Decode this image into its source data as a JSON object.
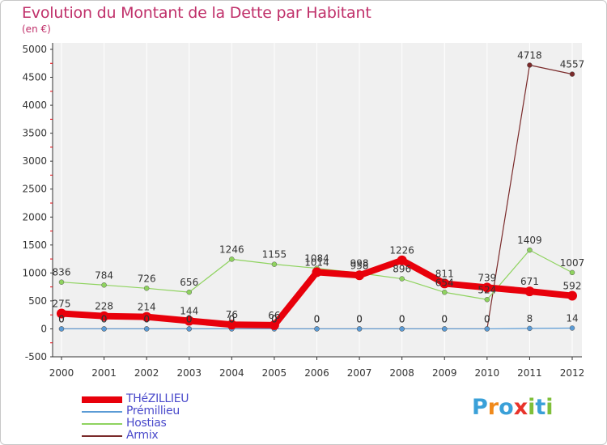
{
  "title": "Evolution du Montant de la Dette par Habitant",
  "subtitle": "(en €)",
  "logo": {
    "letters": [
      "P",
      "r",
      "o",
      "x",
      "i",
      "t",
      "i"
    ],
    "colors": [
      "#3aa0d8",
      "#f08a1c",
      "#3aa0d8",
      "#e8332b",
      "#7fbf3a",
      "#3aa0d8",
      "#7fbf3a"
    ]
  },
  "chart_data": {
    "type": "line",
    "x": [
      "2000",
      "2001",
      "2002",
      "2003",
      "2004",
      "2005",
      "2006",
      "2007",
      "2008",
      "2009",
      "2010",
      "2011",
      "2012"
    ],
    "ylim": [
      -500,
      5000
    ],
    "yticks": [
      "-500",
      "0",
      "500",
      "1000",
      "1500",
      "2000",
      "2500",
      "3000",
      "3500",
      "4000",
      "4500",
      "5000"
    ],
    "series": [
      {
        "name": "THéZILLIEU",
        "color": "#e8000b",
        "values": [
          275,
          228,
          214,
          144,
          76,
          66,
          1014,
          958,
          1226,
          811,
          739,
          671,
          592
        ],
        "labels": [
          "275",
          "228",
          "214",
          "144",
          "76",
          "66",
          "1014",
          "958",
          "1226",
          "811",
          "739",
          "671",
          "592"
        ]
      },
      {
        "name": "Prémillieu",
        "color": "#5b9bd5",
        "values": [
          0,
          0,
          0,
          0,
          0,
          0,
          0,
          0,
          0,
          0,
          0,
          8,
          14
        ],
        "labels": [
          "0",
          "0",
          "0",
          "0",
          "0",
          "0",
          "0",
          "0",
          "0",
          "0",
          "0",
          "8",
          "14"
        ]
      },
      {
        "name": "Hostias",
        "color": "#8fd35f",
        "values": [
          836,
          784,
          726,
          656,
          1246,
          1155,
          1084,
          998,
          896,
          654,
          524,
          1409,
          1007
        ],
        "labels": [
          "836",
          "784",
          "726",
          "656",
          "1246",
          "1155",
          "1084",
          "998",
          "896",
          "654",
          "524",
          "1409",
          "1007"
        ]
      },
      {
        "name": "Armix",
        "color": "#7a2a2a",
        "values": [
          0,
          0,
          0,
          0,
          0,
          0,
          0,
          0,
          0,
          0,
          0,
          4718,
          4557
        ],
        "labels": [
          "0",
          "0",
          "0",
          "0",
          "0",
          "0",
          "0",
          "0",
          "0",
          "0",
          "0",
          "4718",
          "4557"
        ]
      }
    ]
  }
}
